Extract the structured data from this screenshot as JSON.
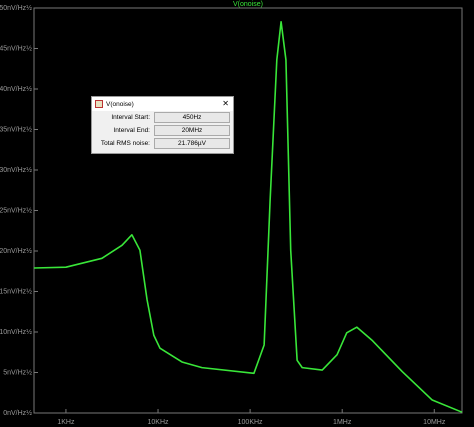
{
  "chart_data": {
    "type": "line",
    "title": "V(onoise)",
    "xscale": "log",
    "grid": false,
    "xlim": [
      450,
      20000000
    ],
    "ylim": [
      0,
      50
    ],
    "xticks": [
      {
        "value": 1000,
        "label": "1KHz"
      },
      {
        "value": 10000,
        "label": "10KHz"
      },
      {
        "value": 100000,
        "label": "100KHz"
      },
      {
        "value": 1000000,
        "label": "1MHz"
      },
      {
        "value": 10000000,
        "label": "10MHz"
      }
    ],
    "yticks": [
      {
        "value": 0,
        "label": "0nV/Hz½"
      },
      {
        "value": 5,
        "label": "5nV/Hz½"
      },
      {
        "value": 10,
        "label": "10nV/Hz½"
      },
      {
        "value": 15,
        "label": "15nV/Hz½"
      },
      {
        "value": 20,
        "label": "20nV/Hz½"
      },
      {
        "value": 25,
        "label": "25nV/Hz½"
      },
      {
        "value": 30,
        "label": "30nV/Hz½"
      },
      {
        "value": 35,
        "label": "35nV/Hz½"
      },
      {
        "value": 40,
        "label": "40nV/Hz½"
      },
      {
        "value": 45,
        "label": "45nV/Hz½"
      },
      {
        "value": 50,
        "label": "50nV/Hz½"
      }
    ],
    "x": [
      450,
      1000,
      2460,
      4060,
      5200,
      6360,
      7600,
      9000,
      10500,
      18200,
      30000,
      110000,
      142000,
      165000,
      195000,
      217000,
      245000,
      276000,
      324000,
      368000,
      607000,
      880000,
      1120000,
      1440000,
      2100000,
      4500000,
      9500000,
      20000000
    ],
    "series": [
      {
        "name": "V(onoise)",
        "color": "#39e639",
        "values": [
          17.9,
          18.0,
          19.1,
          20.7,
          22.0,
          20.1,
          14.0,
          9.6,
          8.0,
          6.3,
          5.6,
          4.9,
          8.4,
          26.3,
          43.6,
          48.3,
          43.6,
          20.1,
          6.5,
          5.6,
          5.3,
          7.2,
          9.9,
          10.6,
          9.0,
          5.1,
          1.6,
          0.1
        ]
      }
    ]
  },
  "dialog": {
    "title": "V(onoise)",
    "rows": [
      [
        "Interval Start:",
        "450Hz"
      ],
      [
        "Interval End:",
        "20MHz"
      ],
      [
        "Total RMS noise:",
        "21.786µV"
      ]
    ]
  }
}
